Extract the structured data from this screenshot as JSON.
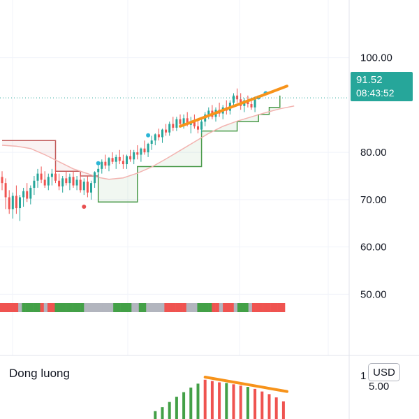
{
  "chart_data": {
    "type": "candlestick",
    "y_axis": {
      "ticks": [
        "100.00",
        "80.00",
        "70.00",
        "60.00",
        "50.00"
      ],
      "range": [
        44,
        106
      ]
    },
    "price_badge": {
      "price": "91.52",
      "time": "08:43:52"
    },
    "last_price": 91.52,
    "colors": {
      "up": "#26a69a",
      "down": "#ef5350",
      "trend_line": "#f7931a",
      "stop_up": "#4a9a4a",
      "stop_down": "#c25b5b",
      "ma": "#f3b3b0",
      "dot_up": "#2bb5d6",
      "dot_down": "#e84f4f",
      "neutral": "#b2b5be"
    },
    "candles": [
      [
        74.8,
        76.0,
        72.0,
        73.5
      ],
      [
        73.5,
        74.5,
        68.0,
        70.5
      ],
      [
        70.5,
        72.0,
        67.0,
        68.0
      ],
      [
        68.0,
        71.5,
        66.0,
        70.8
      ],
      [
        70.8,
        73.0,
        67.0,
        68.2
      ],
      [
        68.2,
        71.0,
        65.5,
        70.5
      ],
      [
        70.5,
        72.5,
        68.5,
        71.8
      ],
      [
        71.8,
        73.5,
        69.5,
        70.2
      ],
      [
        70.2,
        73.0,
        69.0,
        72.5
      ],
      [
        72.5,
        75.0,
        71.0,
        74.0
      ],
      [
        74.0,
        76.5,
        72.5,
        75.5
      ],
      [
        75.5,
        77.0,
        73.5,
        74.2
      ],
      [
        74.2,
        76.0,
        72.5,
        73.0
      ],
      [
        73.0,
        75.5,
        72.0,
        74.8
      ],
      [
        74.8,
        76.5,
        73.0,
        75.5
      ],
      [
        75.5,
        77.0,
        73.5,
        74.0
      ],
      [
        74.0,
        75.5,
        72.0,
        72.8
      ],
      [
        72.8,
        75.0,
        71.5,
        74.5
      ],
      [
        74.5,
        76.0,
        73.0,
        73.5
      ],
      [
        73.5,
        75.5,
        72.0,
        74.8
      ],
      [
        74.8,
        76.0,
        72.5,
        73.0
      ],
      [
        73.0,
        75.0,
        72.0,
        74.2
      ],
      [
        74.2,
        75.5,
        71.5,
        72.0
      ],
      [
        72.0,
        74.5,
        71.0,
        73.8
      ],
      [
        73.8,
        75.0,
        70.5,
        71.5
      ],
      [
        71.5,
        74.0,
        70.0,
        73.5
      ],
      [
        73.5,
        76.0,
        72.5,
        75.8
      ],
      [
        75.8,
        77.5,
        74.5,
        76.5
      ],
      [
        76.5,
        78.5,
        75.5,
        78.0
      ],
      [
        78.0,
        79.5,
        76.5,
        77.2
      ],
      [
        77.2,
        79.0,
        76.0,
        78.8
      ],
      [
        78.8,
        80.0,
        77.5,
        78.0
      ],
      [
        78.0,
        79.5,
        76.5,
        79.0
      ],
      [
        79.0,
        80.5,
        77.5,
        78.2
      ],
      [
        78.2,
        79.5,
        76.5,
        77.5
      ],
      [
        77.5,
        79.5,
        76.5,
        79.2
      ],
      [
        79.2,
        80.5,
        78.0,
        78.5
      ],
      [
        78.5,
        80.5,
        77.5,
        80.0
      ],
      [
        80.0,
        81.5,
        78.5,
        79.5
      ],
      [
        79.5,
        81.0,
        78.0,
        80.8
      ],
      [
        80.8,
        82.5,
        79.5,
        80.0
      ],
      [
        80.0,
        82.0,
        79.0,
        81.8
      ],
      [
        81.8,
        83.5,
        80.5,
        82.5
      ],
      [
        82.5,
        84.0,
        81.5,
        83.8
      ],
      [
        83.8,
        85.0,
        82.5,
        83.2
      ],
      [
        83.2,
        85.0,
        82.0,
        84.8
      ],
      [
        84.8,
        86.0,
        83.5,
        84.2
      ],
      [
        84.2,
        86.5,
        83.5,
        86.0
      ],
      [
        86.0,
        87.5,
        84.5,
        85.2
      ],
      [
        85.2,
        87.5,
        84.5,
        87.0
      ],
      [
        87.0,
        88.0,
        85.5,
        86.0
      ],
      [
        86.0,
        88.0,
        85.0,
        87.2
      ],
      [
        87.2,
        88.5,
        85.5,
        85.8
      ],
      [
        85.8,
        87.5,
        84.0,
        86.5
      ],
      [
        86.5,
        88.0,
        85.0,
        85.5
      ],
      [
        85.5,
        87.0,
        84.0,
        84.8
      ],
      [
        84.8,
        87.0,
        84.0,
        86.5
      ],
      [
        86.5,
        88.5,
        85.5,
        88.0
      ],
      [
        88.0,
        89.5,
        87.0,
        88.8
      ],
      [
        88.8,
        90.0,
        87.0,
        87.5
      ],
      [
        87.5,
        89.5,
        86.5,
        89.0
      ],
      [
        89.0,
        90.5,
        87.5,
        88.2
      ],
      [
        88.2,
        90.0,
        87.0,
        89.5
      ],
      [
        89.5,
        91.0,
        88.0,
        88.8
      ],
      [
        88.8,
        91.0,
        88.0,
        90.5
      ],
      [
        90.5,
        92.5,
        89.5,
        92.0
      ],
      [
        92.0,
        93.5,
        90.5,
        91.2
      ],
      [
        91.2,
        92.5,
        89.0,
        89.8
      ],
      [
        89.8,
        91.5,
        88.5,
        91.0
      ],
      [
        91.0,
        92.0,
        89.5,
        90.2
      ],
      [
        90.2,
        91.5,
        89.0,
        89.5
      ],
      [
        89.5,
        91.8,
        88.5,
        91.52
      ]
    ],
    "moving_average": [
      [
        0,
        81.5
      ],
      [
        4,
        81.3
      ],
      [
        8,
        80.8
      ],
      [
        12,
        79.5
      ],
      [
        16,
        78.0
      ],
      [
        20,
        76.5
      ],
      [
        24,
        75.5
      ],
      [
        27,
        74.7
      ],
      [
        30,
        74.3
      ],
      [
        34,
        74.6
      ],
      [
        38,
        75.6
      ],
      [
        42,
        76.9
      ],
      [
        46,
        78.6
      ],
      [
        50,
        80.4
      ],
      [
        54,
        82.2
      ],
      [
        58,
        84.0
      ],
      [
        62,
        85.5
      ],
      [
        66,
        86.6
      ],
      [
        70,
        87.5
      ],
      [
        74,
        88.4
      ],
      [
        78,
        89.2
      ],
      [
        82,
        89.8
      ]
    ],
    "stop_line_up": [
      [
        27,
        75.5
      ],
      [
        27,
        69.5
      ],
      [
        38,
        69.5
      ],
      [
        38,
        77.0
      ],
      [
        56,
        77.0
      ],
      [
        56,
        84.5
      ],
      [
        66,
        84.5
      ],
      [
        66,
        86.5
      ],
      [
        72,
        86.5
      ],
      [
        72,
        88.0
      ],
      [
        75,
        88.0
      ],
      [
        75,
        89.5
      ],
      [
        78,
        89.5
      ],
      [
        78,
        92.0
      ]
    ],
    "stop_line_down": [
      [
        0,
        82.5
      ],
      [
        15,
        82.5
      ],
      [
        15,
        76.0
      ],
      [
        22,
        76.0
      ],
      [
        22,
        75.0
      ],
      [
        27,
        75.0
      ]
    ],
    "signal_dots": [
      {
        "i": 23,
        "v": 68.5,
        "dir": "down"
      },
      {
        "i": 27,
        "v": 77.7,
        "dir": "up"
      },
      {
        "i": 41,
        "v": 83.6,
        "dir": "up"
      },
      {
        "i": 72,
        "v": 91.6,
        "dir": "up"
      },
      {
        "i": 74,
        "v": 92.5,
        "dir": "up"
      }
    ],
    "trend_line": [
      [
        50,
        85.5
      ],
      [
        80,
        94.0
      ]
    ],
    "status_bar": [
      "red",
      "red",
      "red",
      "red",
      "red",
      "gray",
      "green",
      "green",
      "green",
      "green",
      "green",
      "red",
      "gray",
      "red",
      "red",
      "green",
      "green",
      "green",
      "green",
      "green",
      "green",
      "green",
      "green",
      "gray",
      "gray",
      "gray",
      "gray",
      "gray",
      "gray",
      "gray",
      "gray",
      "green",
      "green",
      "green",
      "green",
      "green",
      "gray",
      "gray",
      "green",
      "green",
      "gray",
      "gray",
      "gray",
      "gray",
      "gray",
      "red",
      "red",
      "red",
      "red",
      "red",
      "red",
      "gray",
      "gray",
      "gray",
      "green",
      "green",
      "green",
      "green",
      "red",
      "red",
      "gray",
      "red",
      "red",
      "red",
      "gray",
      "green",
      "green",
      "green",
      "gray",
      "red",
      "red",
      "red",
      "red",
      "red",
      "red",
      "red",
      "red",
      "red"
    ],
    "momentum": {
      "title": "Dong luong",
      "axis_ticks": [
        "5.00"
      ],
      "axis_one": "1",
      "currency_button": "USD",
      "bars": [
        {
          "i": 43,
          "v": 1.2,
          "c": "green"
        },
        {
          "i": 45,
          "v": 1.8,
          "c": "green"
        },
        {
          "i": 47,
          "v": 2.6,
          "c": "green"
        },
        {
          "i": 49,
          "v": 3.4,
          "c": "green"
        },
        {
          "i": 51,
          "v": 4.1,
          "c": "green"
        },
        {
          "i": 53,
          "v": 4.8,
          "c": "green"
        },
        {
          "i": 55,
          "v": 5.4,
          "c": "green"
        },
        {
          "i": 57,
          "v": 6.0,
          "c": "red"
        },
        {
          "i": 59,
          "v": 5.8,
          "c": "red"
        },
        {
          "i": 61,
          "v": 5.6,
          "c": "red"
        },
        {
          "i": 63,
          "v": 5.5,
          "c": "green"
        },
        {
          "i": 65,
          "v": 5.3,
          "c": "red"
        },
        {
          "i": 67,
          "v": 5.1,
          "c": "red"
        },
        {
          "i": 69,
          "v": 4.9,
          "c": "green"
        },
        {
          "i": 71,
          "v": 4.6,
          "c": "red"
        },
        {
          "i": 73,
          "v": 4.2,
          "c": "red"
        },
        {
          "i": 75,
          "v": 3.8,
          "c": "red"
        },
        {
          "i": 77,
          "v": 3.3,
          "c": "red"
        },
        {
          "i": 79,
          "v": 2.7,
          "c": "red"
        }
      ],
      "trend_line": [
        [
          57,
          6.4
        ],
        [
          80,
          4.2
        ]
      ]
    }
  }
}
